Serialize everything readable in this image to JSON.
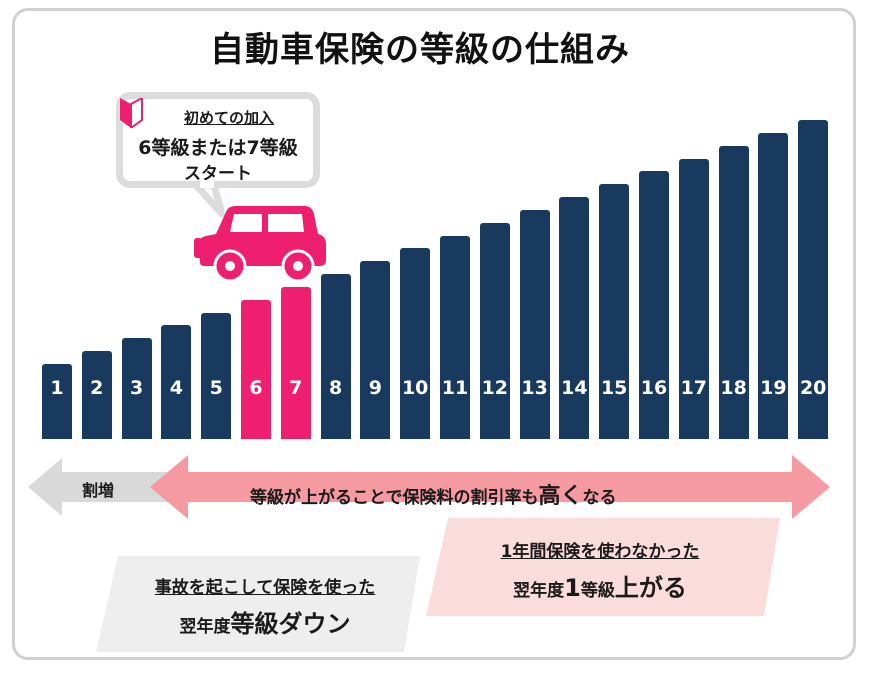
{
  "title": "自動車保険の等級の仕組み",
  "bubble": {
    "line1": "初めての加入",
    "line2": "6等級または7等級",
    "line3": "スタート"
  },
  "colors": {
    "navy": "#173a5e",
    "pink": "#ee1f6e",
    "gray_arrow": "#d9d9d9",
    "pink_arrow": "#f59aa0",
    "pink_box": "#fbdcdc",
    "gray_box": "#eeeeee"
  },
  "chart_data": {
    "type": "bar",
    "categories": [
      "1",
      "2",
      "3",
      "4",
      "5",
      "6",
      "7",
      "8",
      "9",
      "10",
      "11",
      "12",
      "13",
      "14",
      "15",
      "16",
      "17",
      "18",
      "19",
      "20"
    ],
    "values": [
      1,
      2,
      3,
      4,
      5,
      6,
      7,
      8,
      9,
      10,
      11,
      12,
      13,
      14,
      15,
      16,
      17,
      18,
      19,
      20
    ],
    "highlighted": [
      "6",
      "7"
    ]
  },
  "arrows": {
    "left_label": "割増",
    "right_label_pre": "等級が上がることで保険料の割引率も",
    "right_label_emph": "高く",
    "right_label_post": "なる"
  },
  "box_pink": {
    "line1": "1年間保険を使わなかった",
    "line2_pre": "翌年度",
    "line2_num": "1",
    "line2_mid": "等級",
    "line2_emph": "上がる"
  },
  "box_gray": {
    "line1": "事故を起こして保険を使った",
    "line2_pre": "翌年度",
    "line2_emph": "等級ダウン"
  },
  "icons": [
    "beginner-leaf-icon",
    "car-icon"
  ]
}
